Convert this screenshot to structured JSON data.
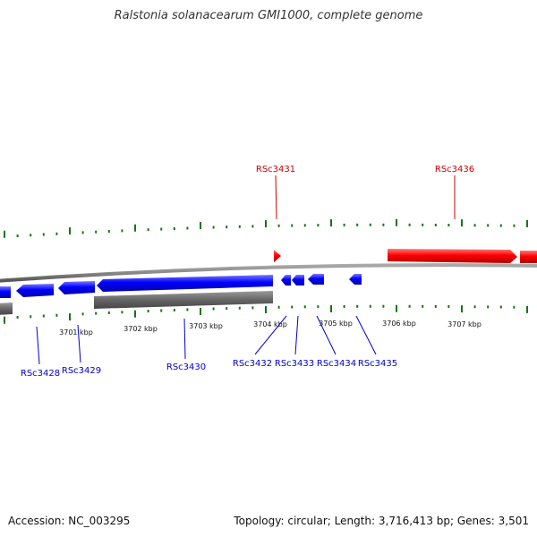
{
  "title": "Ralstonia solanacearum GMI1000, complete genome",
  "footer": {
    "accession": "Accession: NC_003295",
    "summary": "Topology: circular; Length: 3,716,413 bp; Genes: 3,501"
  },
  "colors": {
    "forward_strand": "#ff0000",
    "reverse_strand": "#0000ff",
    "ticks": "#117711",
    "backbone": "#888888",
    "rna_or_pseudo": "#666666"
  },
  "kbp_labels": [
    "3701 kbp",
    "3702 kbp",
    "3703 kbp",
    "3704 kbp",
    "3705 kbp",
    "3706 kbp",
    "3707 kbp"
  ],
  "forward_genes": [
    {
      "name": "RSc3431",
      "labeled": true
    },
    {
      "name": "RSc3436",
      "labeled": true
    }
  ],
  "reverse_genes": [
    {
      "name": "RSc3428"
    },
    {
      "name": "RSc3429"
    },
    {
      "name": "RSc3430"
    },
    {
      "name": "RSc3432"
    },
    {
      "name": "RSc3433"
    },
    {
      "name": "RSc3434"
    },
    {
      "name": "RSc3435"
    }
  ]
}
